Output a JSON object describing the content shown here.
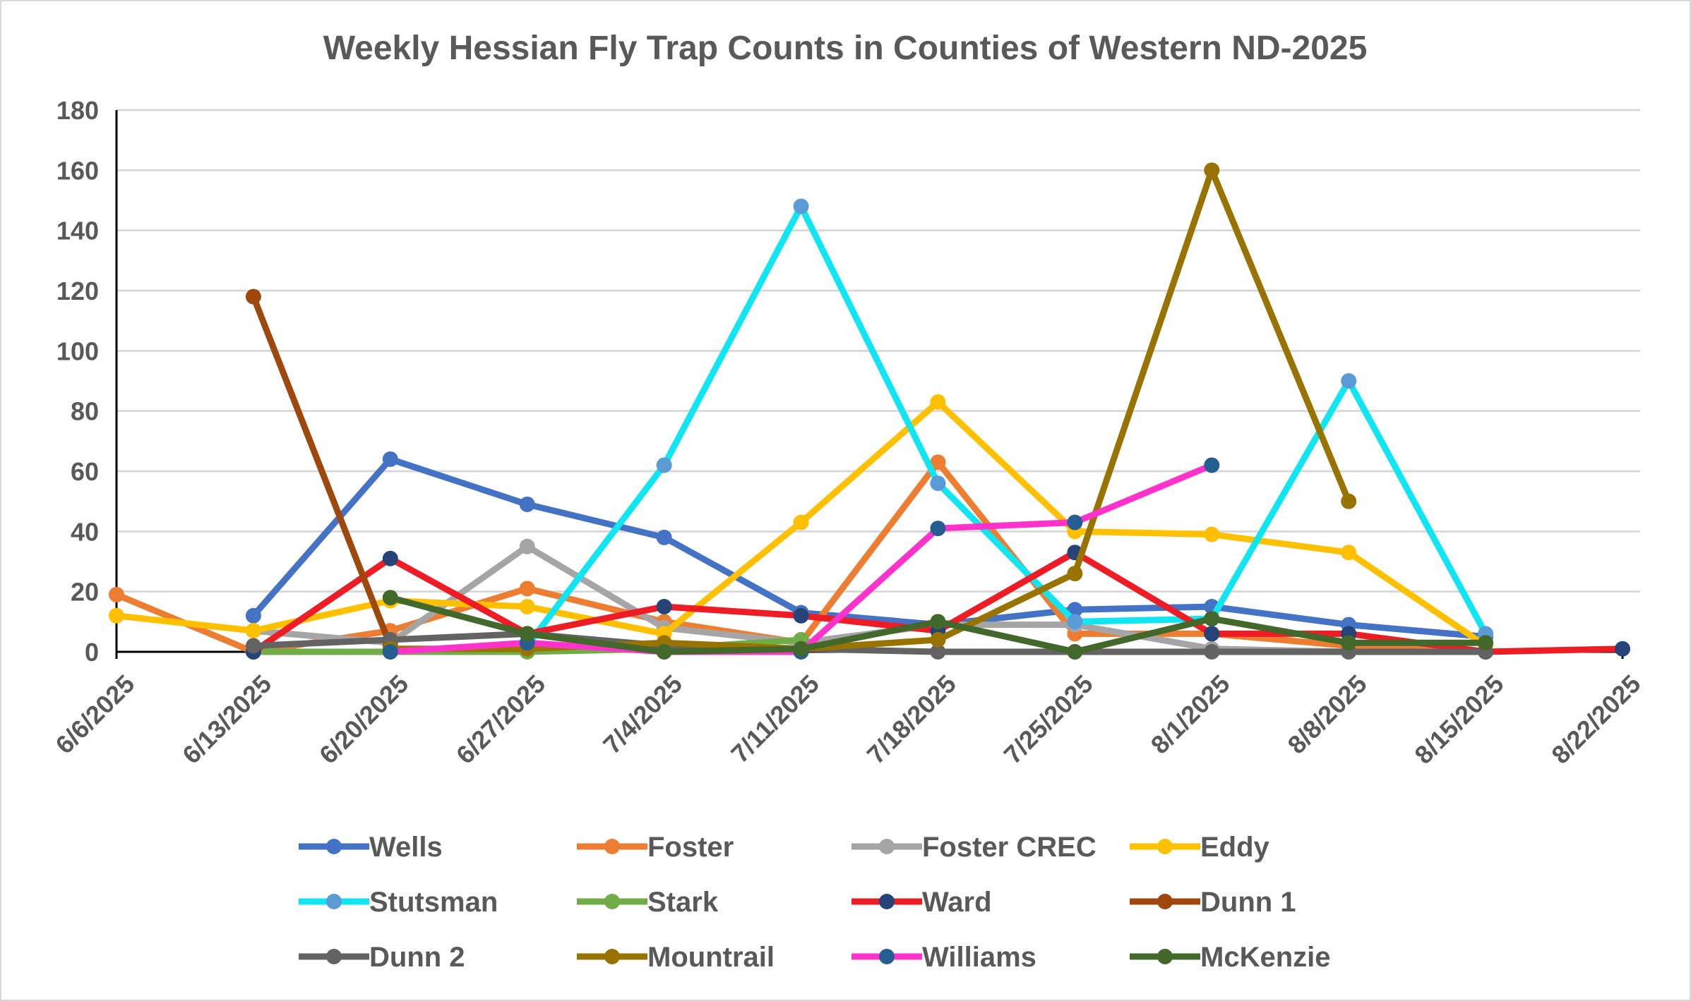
{
  "chart_data": {
    "type": "line",
    "title": "Weekly Hessian Fly Trap Counts in Counties of Western ND-2025",
    "xlabel": "",
    "ylabel": "",
    "categories": [
      "6/6/2025",
      "6/13/2025",
      "6/20/2025",
      "6/27/2025",
      "7/4/2025",
      "7/11/2025",
      "7/18/2025",
      "7/25/2025",
      "8/1/2025",
      "8/8/2025",
      "8/15/2025",
      "8/22/2025"
    ],
    "ylim": [
      0,
      180
    ],
    "yticks": [
      0,
      20,
      40,
      60,
      80,
      100,
      120,
      140,
      160,
      180
    ],
    "grid": true,
    "legend_position": "bottom",
    "series": [
      {
        "name": "Wells",
        "color": "#4472C4",
        "marker": "#4472C4",
        "values": [
          null,
          12,
          64,
          49,
          38,
          13,
          9,
          14,
          15,
          9,
          5,
          null
        ]
      },
      {
        "name": "Foster",
        "color": "#ED7D31",
        "marker": "#ED7D31",
        "values": [
          19,
          0,
          7,
          21,
          10,
          3,
          63,
          6,
          6,
          2,
          0,
          null
        ]
      },
      {
        "name": "Foster CREC",
        "color": "#A5A5A5",
        "marker": "#A5A5A5",
        "values": [
          null,
          7,
          3,
          35,
          8,
          3,
          9,
          9,
          1,
          0,
          0,
          null
        ]
      },
      {
        "name": "Eddy",
        "color": "#FFC000",
        "marker": "#FFC000",
        "values": [
          12,
          7,
          17,
          15,
          6,
          43,
          83,
          40,
          39,
          33,
          2,
          null
        ]
      },
      {
        "name": "Stutsman",
        "color": "#0FE6F2",
        "marker": "#5B9BD5",
        "values": [
          null,
          0,
          0,
          2,
          62,
          148,
          56,
          10,
          11,
          90,
          6,
          null
        ]
      },
      {
        "name": "Stark",
        "color": "#70AD47",
        "marker": "#70AD47",
        "values": [
          null,
          0,
          0,
          0,
          1,
          4,
          null,
          null,
          null,
          null,
          null,
          null
        ]
      },
      {
        "name": "Ward",
        "color": "#EE1C25",
        "marker": "#264478",
        "values": [
          null,
          0,
          31,
          6,
          15,
          12,
          7,
          33,
          6,
          6,
          0,
          1
        ]
      },
      {
        "name": "Dunn 1",
        "color": "#9E480E",
        "marker": "#9E480E",
        "values": [
          null,
          118,
          2,
          null,
          null,
          null,
          null,
          null,
          null,
          null,
          null,
          null
        ]
      },
      {
        "name": "Dunn 2",
        "color": "#636363",
        "marker": "#636363",
        "values": [
          null,
          2,
          4,
          6,
          2,
          1,
          0,
          0,
          0,
          0,
          0,
          null
        ]
      },
      {
        "name": "Mountrail",
        "color": "#997300",
        "marker": "#997300",
        "values": [
          null,
          null,
          1,
          1,
          3,
          1,
          4,
          26,
          160,
          50,
          null,
          null
        ]
      },
      {
        "name": "Williams",
        "color": "#FF33CC",
        "marker": "#255E91",
        "values": [
          null,
          null,
          0,
          3,
          0,
          0,
          41,
          43,
          62,
          null,
          null,
          null
        ]
      },
      {
        "name": "McKenzie",
        "color": "#43682B",
        "marker": "#43682B",
        "values": [
          null,
          null,
          18,
          6,
          0,
          1,
          10,
          0,
          11,
          3,
          3,
          null
        ]
      }
    ]
  }
}
